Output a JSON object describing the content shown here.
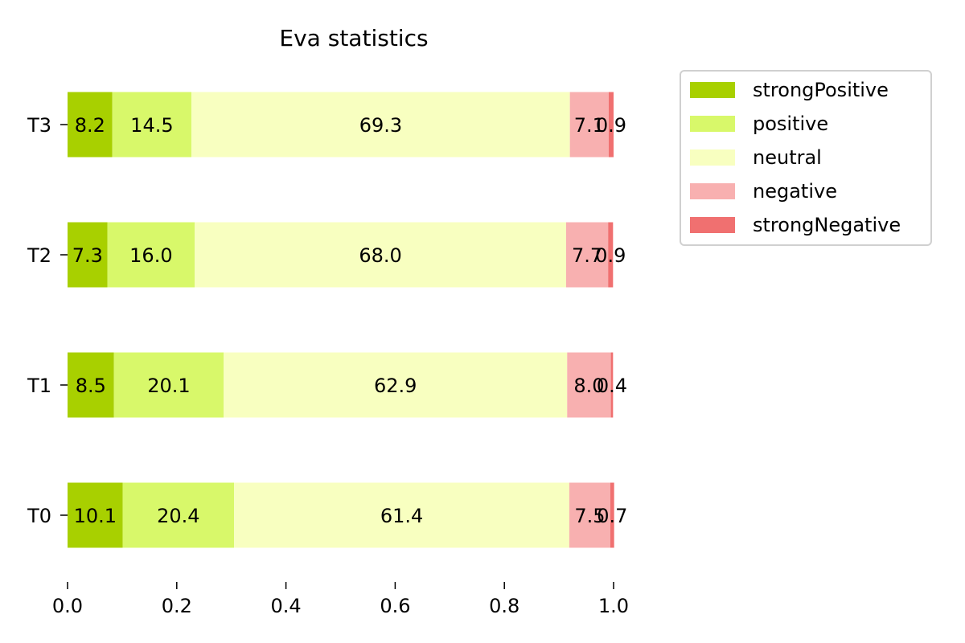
{
  "chart_data": {
    "type": "bar",
    "orientation": "horizontal",
    "stacked": true,
    "title": "Eva statistics",
    "xlabel": "",
    "ylabel": "",
    "categories": [
      "T0",
      "T1",
      "T2",
      "T3"
    ],
    "xlim": [
      0.0,
      1.0
    ],
    "xticks": [
      "0.0",
      "0.2",
      "0.4",
      "0.6",
      "0.8",
      "1.0"
    ],
    "grid": false,
    "legend_position": "upper right, outside plot",
    "series": [
      {
        "name": "strongPositive",
        "color": "#a8d000",
        "values": [
          0.101,
          0.085,
          0.073,
          0.082
        ],
        "labels": [
          "10.1",
          "8.5",
          "7.3",
          "8.2"
        ]
      },
      {
        "name": "positive",
        "color": "#d8f86a",
        "values": [
          0.204,
          0.201,
          0.16,
          0.145
        ],
        "labels": [
          "20.4",
          "20.1",
          "16.0",
          "14.5"
        ]
      },
      {
        "name": "neutral",
        "color": "#f8ffc0",
        "values": [
          0.614,
          0.629,
          0.68,
          0.693
        ],
        "labels": [
          "61.4",
          "62.9",
          "68.0",
          "69.3"
        ]
      },
      {
        "name": "negative",
        "color": "#f8b0b0",
        "values": [
          0.075,
          0.08,
          0.077,
          0.071
        ],
        "labels": [
          "7.5",
          "8.0",
          "7.7",
          "7.1"
        ]
      },
      {
        "name": "strongNegative",
        "color": "#f07070",
        "values": [
          0.007,
          0.004,
          0.009,
          0.009
        ],
        "labels": [
          "0.7",
          "0.4",
          "0.9",
          "0.9"
        ]
      }
    ]
  }
}
